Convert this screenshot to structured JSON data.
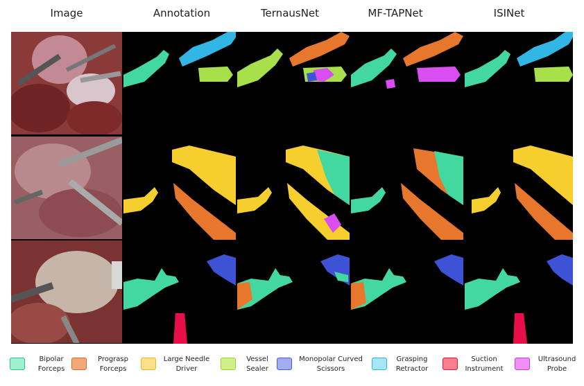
{
  "columns": [
    {
      "key": "image",
      "title": "Image"
    },
    {
      "key": "annotation",
      "title": "Annotation"
    },
    {
      "key": "ternausnet",
      "title": "TernausNet"
    },
    {
      "key": "mftapnet",
      "title": "MF-TAPNet"
    },
    {
      "key": "isinet",
      "title": "ISINet"
    }
  ],
  "legend": [
    {
      "line1": "Bipolar",
      "line2": "Forceps",
      "fill": "#9ff0cf",
      "border": "#2fbf8a"
    },
    {
      "line1": "Prograsp",
      "line2": "Forceps",
      "fill": "#f3a87a",
      "border": "#d96a2b"
    },
    {
      "line1": "Large Needle",
      "line2": "Driver",
      "fill": "#fbe08a",
      "border": "#e7b920"
    },
    {
      "line1": "Vessel",
      "line2": "Sealer",
      "fill": "#cdf08a",
      "border": "#9ad22d"
    },
    {
      "line1": "Monopolar Curved",
      "line2": "Scissors",
      "fill": "#a4acf0",
      "border": "#4b57d6"
    },
    {
      "line1": "Grasping",
      "line2": "Retractor",
      "fill": "#a6e6f5",
      "border": "#2cb7e0"
    },
    {
      "line1": "Suction",
      "line2": "Instrument",
      "fill": "#f77f8e",
      "border": "#e0193a"
    },
    {
      "line1": "Ultrasound",
      "line2": "Probe",
      "fill": "#ef90f5",
      "border": "#cc3ad9"
    }
  ],
  "colors": {
    "bipolar": "#43d89f",
    "prograsp": "#e8772e",
    "needle": "#f6cf2f",
    "sealer": "#a7e04a",
    "monopolar": "#3d52d5",
    "retractor": "#32b6e6",
    "suction": "#e80f48",
    "probe": "#d84ef0"
  }
}
